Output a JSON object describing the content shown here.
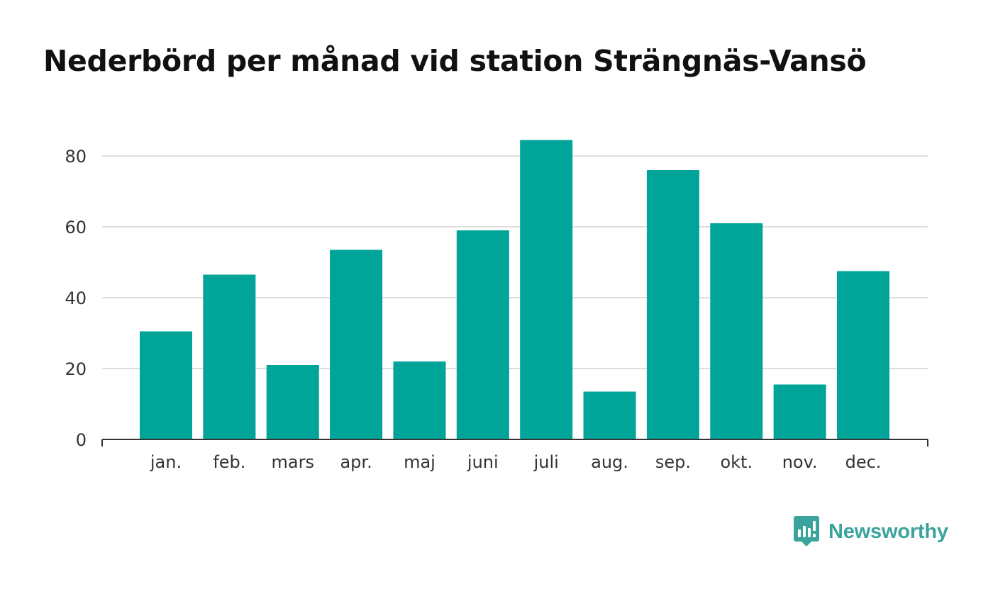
{
  "title": "Nederbörd per månad vid station Strängnäs-Vansö",
  "brand": {
    "name": "Newsworthy",
    "icon": "newsworthy-chart-bubble-icon",
    "color": "#3aa39b"
  },
  "chart_data": {
    "type": "bar",
    "title": "Nederbörd per månad vid station Strängnäs-Vansö",
    "categories": [
      "jan.",
      "feb.",
      "mars",
      "apr.",
      "maj",
      "juni",
      "juli",
      "aug.",
      "sep.",
      "okt.",
      "nov.",
      "dec."
    ],
    "values": [
      30.5,
      46.5,
      21,
      53.5,
      22,
      59,
      84.5,
      13.5,
      76,
      61,
      15.5,
      47.5
    ],
    "xlabel": "",
    "ylabel": "",
    "ylim": [
      0,
      90
    ],
    "yticks": [
      0,
      20,
      40,
      60,
      80
    ],
    "grid": true,
    "bar_color": "#00a499",
    "grid_color": "#dedede",
    "axis_color": "#333333"
  }
}
